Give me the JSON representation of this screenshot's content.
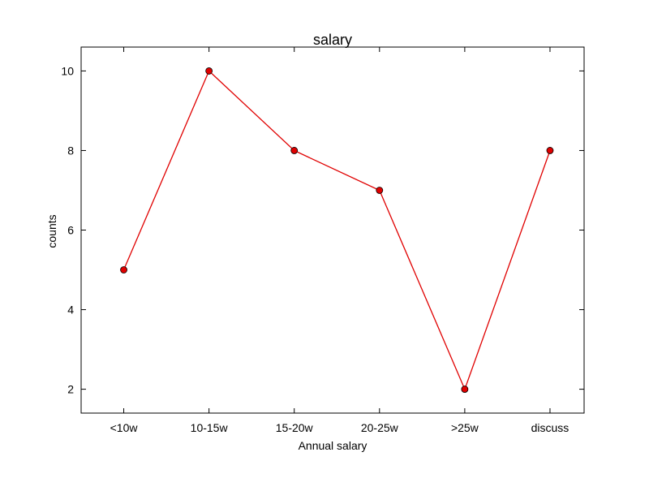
{
  "chart_data": {
    "type": "line",
    "title": "salary",
    "xlabel": "Annual salary",
    "ylabel": "counts",
    "categories": [
      "<10w",
      "10-15w",
      "15-20w",
      "20-25w",
      ">25w",
      "discuss"
    ],
    "series": [
      {
        "values": [
          5,
          10,
          8,
          7,
          2,
          8
        ],
        "color": "#e00000",
        "marker": "circle",
        "marker_fill": "#e00000",
        "marker_edge": "#000000"
      }
    ],
    "ylim": [
      1.4,
      10.6
    ],
    "yticks": [
      2,
      4,
      6,
      8,
      10
    ],
    "xlim": [
      0.5,
      6.4
    ],
    "grid": false
  }
}
